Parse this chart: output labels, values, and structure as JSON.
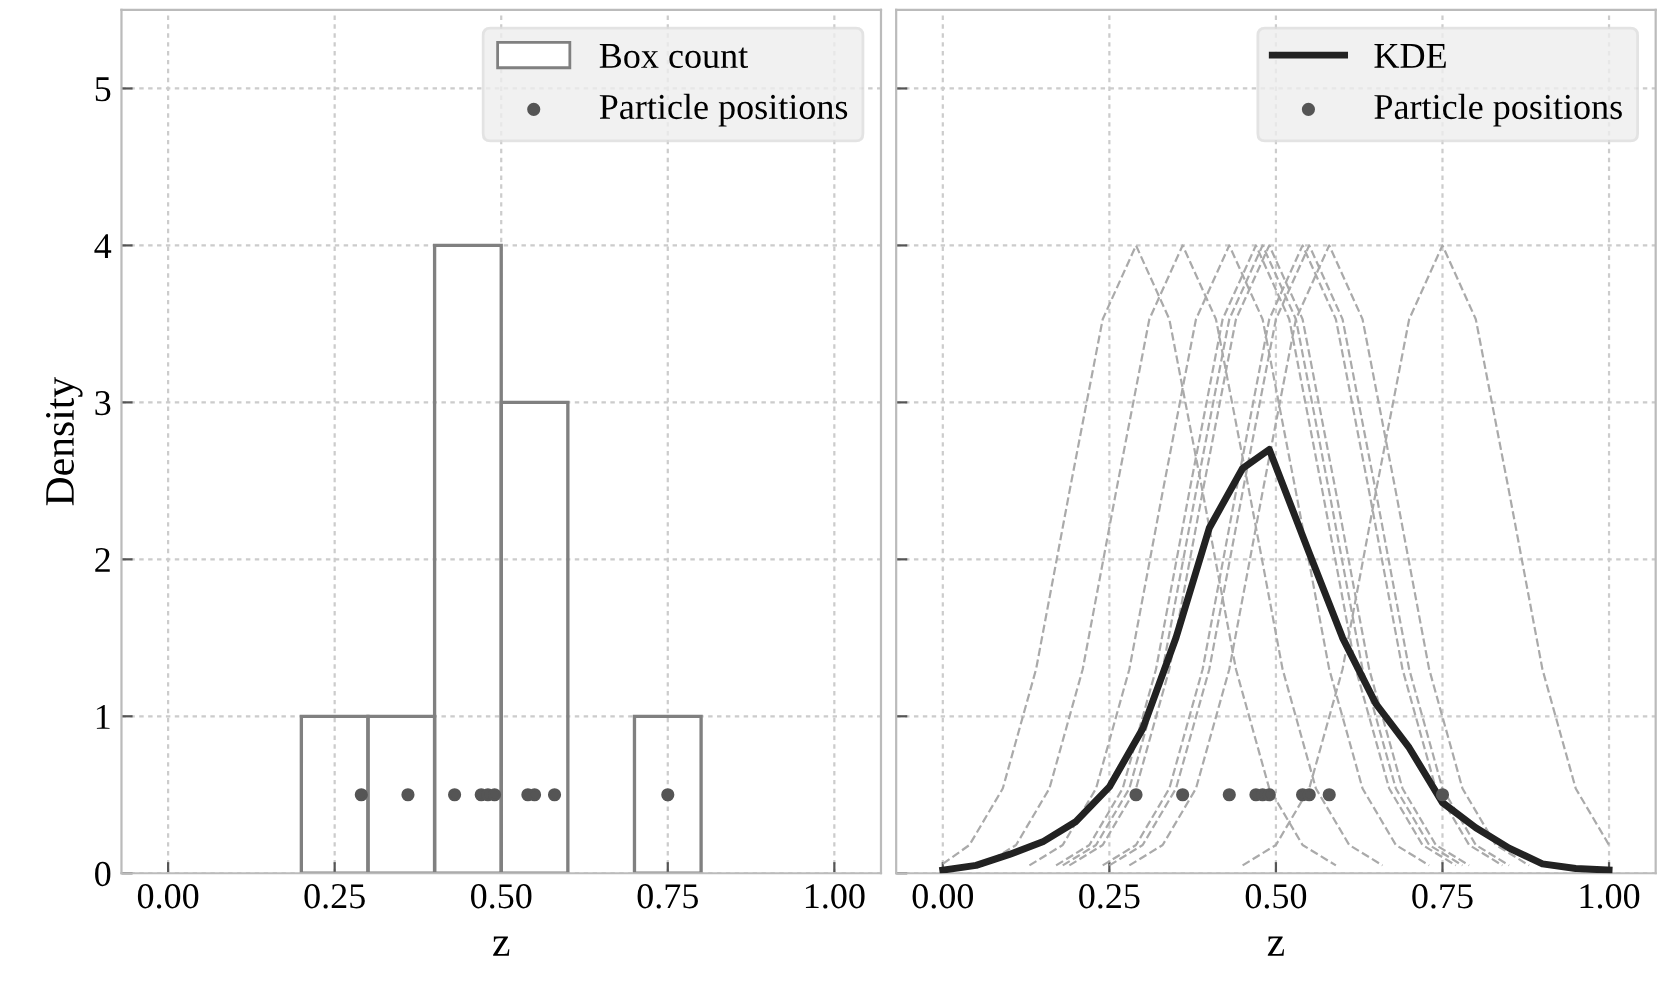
{
  "chart_data": [
    {
      "type": "histogram",
      "xlabel": "z",
      "ylabel": "Density",
      "bins": [
        0.2,
        0.3,
        0.4,
        0.5,
        0.6,
        0.7,
        0.8
      ],
      "xlim": [
        -0.07,
        1.07
      ],
      "ylim": [
        0,
        5.5
      ],
      "xticks": [
        {
          "value": 0,
          "label": "0.00"
        },
        {
          "value": 0.25,
          "label": "0.25"
        },
        {
          "value": 0.5,
          "label": "0.50"
        },
        {
          "value": 0.75,
          "label": "0.75"
        },
        {
          "value": 1,
          "label": "1.00"
        }
      ],
      "yticks": [
        0,
        1,
        2,
        3,
        4,
        5
      ],
      "grid": true,
      "legend": "top right",
      "series": [
        {
          "name": "Box count",
          "color": "#808080",
          "values": [
            1,
            1,
            4,
            3,
            0,
            1
          ]
        },
        {
          "type": "scatter",
          "name": "Particle positions",
          "color": "#555555",
          "marker": "circle",
          "x": [
            0.29,
            0.36,
            0.43,
            0.47,
            0.48,
            0.49,
            0.54,
            0.55,
            0.58,
            0.75
          ],
          "values": [
            0.5,
            0.5,
            0.5,
            0.5,
            0.5,
            0.5,
            0.5,
            0.5,
            0.5,
            0.5
          ]
        }
      ]
    },
    {
      "type": "line",
      "xlabel": "z",
      "xlim": [
        -0.07,
        1.07
      ],
      "ylim": [
        0,
        5.5
      ],
      "tick_labels": "x",
      "xticks": [
        {
          "value": 0,
          "label": "0.00"
        },
        {
          "value": 0.25,
          "label": "0.25"
        },
        {
          "value": 0.5,
          "label": "0.50"
        },
        {
          "value": 0.75,
          "label": "0.75"
        },
        {
          "value": 1,
          "label": "1.00"
        }
      ],
      "yticks": [
        0,
        1,
        2,
        3,
        4,
        5
      ],
      "grid": true,
      "legend": "top right",
      "series": [
        {
          "type": "line",
          "color": "#aaaaaa",
          "line_style": "dashed",
          "x": [
            0.0,
            0.04,
            0.09,
            0.14,
            0.19,
            0.24,
            0.29,
            0.34,
            0.39,
            0.44,
            0.49,
            0.54,
            0.59
          ],
          "values": [
            0.06,
            0.18,
            0.54,
            1.3,
            2.43,
            3.53,
            4,
            3.53,
            2.43,
            1.3,
            0.54,
            0.18,
            0.05
          ]
        },
        {
          "type": "line",
          "color": "#aaaaaa",
          "line_style": "dashed",
          "x": [
            0.06,
            0.11,
            0.16,
            0.21,
            0.26,
            0.31,
            0.36,
            0.41,
            0.46,
            0.51,
            0.56,
            0.61,
            0.66
          ],
          "values": [
            0.05,
            0.18,
            0.54,
            1.3,
            2.43,
            3.53,
            4,
            3.53,
            2.43,
            1.3,
            0.54,
            0.18,
            0.05
          ]
        },
        {
          "type": "line",
          "color": "#aaaaaa",
          "line_style": "dashed",
          "x": [
            0.13,
            0.18,
            0.23,
            0.28,
            0.33,
            0.38,
            0.43,
            0.48,
            0.53,
            0.58,
            0.63,
            0.68,
            0.73
          ],
          "values": [
            0.05,
            0.18,
            0.54,
            1.3,
            2.43,
            3.53,
            4,
            3.53,
            2.43,
            1.3,
            0.54,
            0.18,
            0.05
          ]
        },
        {
          "type": "line",
          "color": "#aaaaaa",
          "line_style": "dashed",
          "x": [
            0.17,
            0.22,
            0.27,
            0.32,
            0.37,
            0.42,
            0.47,
            0.52,
            0.57,
            0.62,
            0.67,
            0.72,
            0.77
          ],
          "values": [
            0.05,
            0.18,
            0.54,
            1.3,
            2.43,
            3.53,
            4,
            3.53,
            2.43,
            1.3,
            0.54,
            0.18,
            0.05
          ]
        },
        {
          "type": "line",
          "color": "#aaaaaa",
          "line_style": "dashed",
          "x": [
            0.18,
            0.23,
            0.28,
            0.33,
            0.38,
            0.43,
            0.48,
            0.53,
            0.58,
            0.63,
            0.68,
            0.73,
            0.78
          ],
          "values": [
            0.05,
            0.18,
            0.54,
            1.3,
            2.43,
            3.53,
            4,
            3.53,
            2.43,
            1.3,
            0.54,
            0.18,
            0.05
          ]
        },
        {
          "type": "line",
          "color": "#aaaaaa",
          "line_style": "dashed",
          "x": [
            0.19,
            0.24,
            0.29,
            0.34,
            0.39,
            0.44,
            0.49,
            0.54,
            0.59,
            0.64,
            0.69,
            0.74,
            0.79
          ],
          "values": [
            0.05,
            0.18,
            0.54,
            1.3,
            2.43,
            3.53,
            4,
            3.53,
            2.43,
            1.3,
            0.54,
            0.18,
            0.05
          ]
        },
        {
          "type": "line",
          "color": "#aaaaaa",
          "line_style": "dashed",
          "x": [
            0.24,
            0.29,
            0.34,
            0.39,
            0.44,
            0.49,
            0.54,
            0.59,
            0.64,
            0.69,
            0.74,
            0.79,
            0.84
          ],
          "values": [
            0.05,
            0.18,
            0.54,
            1.3,
            2.43,
            3.53,
            4,
            3.53,
            2.43,
            1.3,
            0.54,
            0.18,
            0.05
          ]
        },
        {
          "type": "line",
          "color": "#aaaaaa",
          "line_style": "dashed",
          "x": [
            0.25,
            0.3,
            0.35,
            0.4,
            0.45,
            0.5,
            0.55,
            0.6,
            0.65,
            0.7,
            0.75,
            0.8,
            0.85
          ],
          "values": [
            0.05,
            0.18,
            0.54,
            1.3,
            2.43,
            3.53,
            4,
            3.53,
            2.43,
            1.3,
            0.54,
            0.18,
            0.05
          ]
        },
        {
          "type": "line",
          "color": "#aaaaaa",
          "line_style": "dashed",
          "x": [
            0.28,
            0.33,
            0.38,
            0.43,
            0.48,
            0.53,
            0.58,
            0.63,
            0.68,
            0.73,
            0.78,
            0.83,
            0.88
          ],
          "values": [
            0.05,
            0.18,
            0.54,
            1.3,
            2.43,
            3.53,
            4,
            3.53,
            2.43,
            1.3,
            0.54,
            0.18,
            0.05
          ]
        },
        {
          "type": "line",
          "color": "#aaaaaa",
          "line_style": "dashed",
          "x": [
            0.45,
            0.5,
            0.55,
            0.6,
            0.65,
            0.7,
            0.75,
            0.8,
            0.85,
            0.9,
            0.95,
            1.0
          ],
          "values": [
            0.05,
            0.18,
            0.54,
            1.3,
            2.43,
            3.53,
            4,
            3.53,
            2.43,
            1.3,
            0.54,
            0.18
          ]
        },
        {
          "name": "KDE",
          "color": "#222222",
          "line_style": "solid",
          "x": [
            0.0,
            0.05,
            0.1,
            0.15,
            0.2,
            0.25,
            0.3,
            0.35,
            0.4,
            0.45,
            0.49,
            0.55,
            0.6,
            0.65,
            0.7,
            0.75,
            0.8,
            0.85,
            0.9,
            0.95,
            1.0
          ],
          "values": [
            0.02,
            0.05,
            0.12,
            0.2,
            0.33,
            0.55,
            0.92,
            1.5,
            2.2,
            2.58,
            2.7,
            2.04,
            1.5,
            1.08,
            0.8,
            0.45,
            0.29,
            0.16,
            0.06,
            0.03,
            0.02
          ]
        },
        {
          "type": "scatter",
          "name": "Particle positions",
          "color": "#555555",
          "marker": "circle",
          "x": [
            0.29,
            0.36,
            0.43,
            0.47,
            0.48,
            0.49,
            0.54,
            0.55,
            0.58,
            0.75
          ],
          "values": [
            0.5,
            0.5,
            0.5,
            0.5,
            0.5,
            0.5,
            0.5,
            0.5,
            0.5,
            0.5
          ]
        }
      ]
    }
  ]
}
